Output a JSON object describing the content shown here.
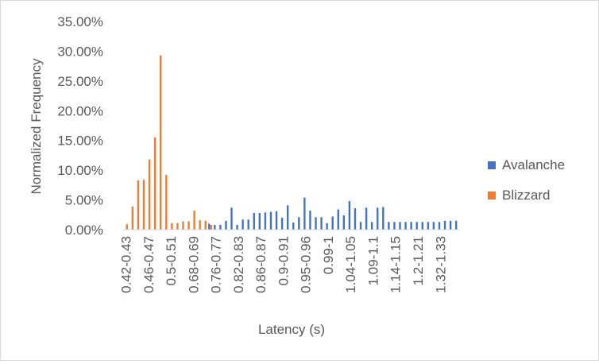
{
  "chart_data": {
    "type": "bar",
    "xlabel": "Latency (s)",
    "ylabel": "Normalized Frequency",
    "ylim": [
      0,
      0.35
    ],
    "y_ticks": [
      "0.00%",
      "5.00%",
      "10.00%",
      "15.00%",
      "20.00%",
      "25.00%",
      "30.00%",
      "35.00%"
    ],
    "x_tick_labels": [
      "0.42-0.43",
      "0.46-0.47",
      "0.5-0.51",
      "0.68-0.69",
      "0.76-0.77",
      "0.82-0.83",
      "0.86-0.87",
      "0.9-0.91",
      "0.95-0.96",
      "0.99-1",
      "1.04-1.05",
      "1.09-1.1",
      "1.14-1.15",
      "1.2-1.21",
      "1.32-1.33"
    ],
    "legend_position": "right",
    "grid": false,
    "series": [
      {
        "name": "Avalanche",
        "color": "#4472c4",
        "values": [
          0,
          0,
          0,
          0,
          0,
          0,
          0,
          0,
          0,
          0,
          0,
          0,
          0,
          0,
          0,
          0.01,
          0.008,
          0.008,
          0.015,
          0.037,
          0.008,
          0.017,
          0.017,
          0.028,
          0.028,
          0.029,
          0.03,
          0.031,
          0.02,
          0.041,
          0.012,
          0.021,
          0.054,
          0.032,
          0.021,
          0.021,
          0.011,
          0.022,
          0.034,
          0.024,
          0.048,
          0.036,
          0.013,
          0.037,
          0.013,
          0.037,
          0.038,
          0.013,
          0.013,
          0.013,
          0.013,
          0.013,
          0.013,
          0.013,
          0.013,
          0.013,
          0.013,
          0.015,
          0.015,
          0.015
        ]
      },
      {
        "name": "Blizzard",
        "color": "#ed7d31",
        "values": [
          0.009,
          0.039,
          0.083,
          0.084,
          0.118,
          0.155,
          0.293,
          0.092,
          0.011,
          0.011,
          0.014,
          0.014,
          0.032,
          0.016,
          0.015,
          0.008,
          0,
          0,
          0,
          0,
          0,
          0,
          0,
          0,
          0,
          0,
          0,
          0,
          0,
          0,
          0,
          0,
          0,
          0,
          0,
          0,
          0,
          0,
          0,
          0,
          0,
          0,
          0,
          0,
          0,
          0,
          0,
          0,
          0,
          0,
          0,
          0,
          0,
          0,
          0,
          0,
          0,
          0,
          0,
          0
        ]
      }
    ]
  }
}
